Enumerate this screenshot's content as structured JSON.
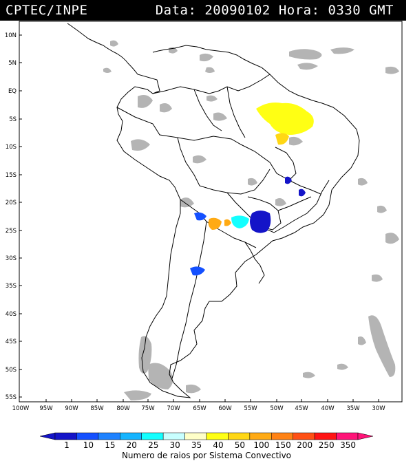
{
  "header": {
    "title": "CPTEC/INPE",
    "date_label": "Data:",
    "date_value": "20090102",
    "hour_label": "Hora:",
    "hour_value": "0330 GMT"
  },
  "map": {
    "lat_labels": [
      "10N",
      "5N",
      "EQ",
      "5S",
      "10S",
      "15S",
      "20S",
      "25S",
      "30S",
      "35S",
      "40S",
      "45S",
      "50S",
      "55S"
    ],
    "lon_labels": [
      "100W",
      "95W",
      "90W",
      "85W",
      "80W",
      "75W",
      "70W",
      "65W",
      "60W",
      "55W",
      "50W",
      "45W",
      "40W",
      "35W",
      "30W"
    ],
    "cloud_color": "#b4b4b4",
    "border_color": "#000000"
  },
  "colorbar": {
    "colors": [
      "#1414c8",
      "#1450ff",
      "#1e82ff",
      "#14b4ff",
      "#14ffff",
      "#c8ffff",
      "#ffffc8",
      "#ffff14",
      "#ffd714",
      "#ffaa14",
      "#ff8214",
      "#ff5014",
      "#ff1414",
      "#ff1478"
    ],
    "tick_labels": [
      "1",
      "10",
      "15",
      "20",
      "25",
      "30",
      "35",
      "40",
      "50",
      "100",
      "150",
      "200",
      "250",
      "350"
    ],
    "caption": "Numero de raios por Sistema Convectivo"
  }
}
